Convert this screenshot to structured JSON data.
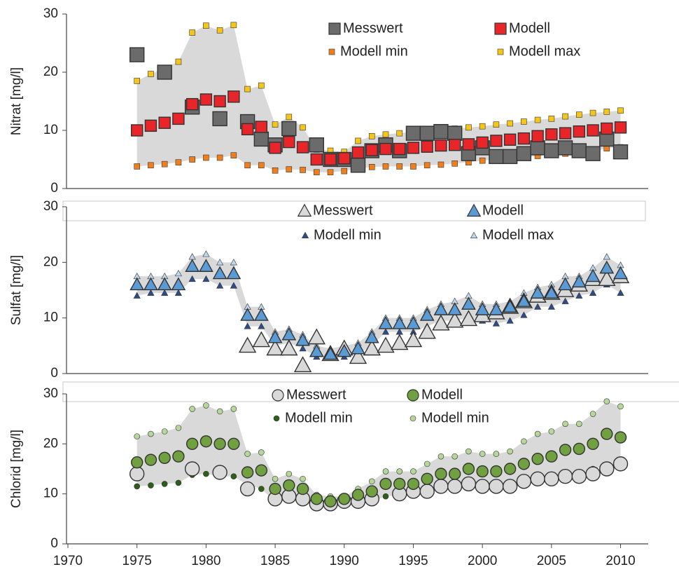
{
  "chart_data": [
    {
      "type": "scatter",
      "ylabel": "Nitrat [mg/l]",
      "marker": "square",
      "band_color": "#d9d9d9",
      "x": [
        1975,
        1976,
        1977,
        1978,
        1979,
        1980,
        1981,
        1982,
        1983,
        1984,
        1985,
        1986,
        1987,
        1988,
        1989,
        1990,
        1991,
        1992,
        1993,
        1994,
        1995,
        1996,
        1997,
        1998,
        1999,
        2000,
        2001,
        2002,
        2003,
        2004,
        2005,
        2006,
        2007,
        2008,
        2009,
        2010
      ],
      "xlim": [
        1970,
        2012
      ],
      "ylim": [
        0,
        30
      ],
      "yticks": [
        0,
        10,
        20,
        30
      ],
      "series": [
        {
          "name": "Messwert",
          "color": "#6b6b6b",
          "values": [
            23,
            null,
            20,
            null,
            14,
            null,
            12,
            null,
            11.5,
            8.5,
            7.5,
            10.3,
            null,
            7.5,
            5,
            5,
            4,
            6.5,
            7.5,
            6.5,
            9.5,
            9.5,
            9.8,
            9.5,
            6,
            7,
            5.5,
            5.5,
            6,
            7,
            6.5,
            7,
            6.5,
            6,
            8.5,
            6.3
          ]
        },
        {
          "name": "Modell",
          "color": "#e8262a",
          "values": [
            10,
            10.8,
            11.3,
            12,
            14.5,
            15.3,
            15,
            15.8,
            10.2,
            10.6,
            7,
            8,
            7.1,
            5,
            5,
            5.2,
            6.2,
            6.6,
            6.8,
            6.8,
            7,
            7.2,
            7.4,
            7.5,
            7.6,
            7.9,
            8.2,
            8.4,
            8.6,
            9,
            9.3,
            9.5,
            9.8,
            10,
            10.3,
            10.5
          ]
        },
        {
          "name": "Modell min",
          "color": "#f07f1b",
          "values": [
            3.8,
            4,
            4.2,
            4.5,
            5,
            5.3,
            5.3,
            5.7,
            4,
            4,
            3.1,
            3.3,
            3.2,
            2.8,
            2.8,
            3,
            3.5,
            3.7,
            3.8,
            3.8,
            3.8,
            4,
            4.1,
            4.3,
            4.5,
            4.8,
            5,
            5.1,
            5.3,
            5.6,
            5.9,
            6,
            6.2,
            6.4,
            6.9,
            7.1
          ]
        },
        {
          "name": "Modell max",
          "color": "#f5c518",
          "values": [
            18.5,
            19.7,
            20.7,
            21.8,
            26.8,
            28,
            27.2,
            28.1,
            17.1,
            17.7,
            11,
            12.3,
            10.5,
            6.7,
            6.5,
            6.3,
            8.2,
            9,
            9.3,
            9.5,
            9.8,
            10,
            10.2,
            10.3,
            10.5,
            10.7,
            11,
            11.2,
            11.5,
            11.8,
            12,
            12.4,
            12.7,
            13,
            13.2,
            13.4
          ]
        }
      ]
    },
    {
      "type": "scatter",
      "ylabel": "Sulfat [mg/l]",
      "marker": "triangle",
      "band_color": "#d9d9d9",
      "x": [
        1975,
        1976,
        1977,
        1978,
        1979,
        1980,
        1981,
        1982,
        1983,
        1984,
        1985,
        1986,
        1987,
        1988,
        1989,
        1990,
        1991,
        1992,
        1993,
        1994,
        1995,
        1996,
        1997,
        1998,
        1999,
        2000,
        2001,
        2002,
        2003,
        2004,
        2005,
        2006,
        2007,
        2008,
        2009,
        2010
      ],
      "xlim": [
        1970,
        2012
      ],
      "ylim": [
        0,
        30
      ],
      "yticks": [
        0,
        10,
        20,
        30
      ],
      "series": [
        {
          "name": "Messwert",
          "color": "#d9d9d9",
          "values": [
            null,
            null,
            null,
            null,
            null,
            null,
            null,
            null,
            5,
            6,
            4.5,
            4.5,
            1.5,
            6.5,
            3.5,
            4.5,
            3,
            4.5,
            5,
            5.5,
            6,
            7.5,
            9,
            9.5,
            9.8,
            10.5,
            11,
            12,
            13,
            14,
            14.5,
            15,
            16,
            17,
            17,
            17.5
          ]
        },
        {
          "name": "Modell",
          "color": "#5b9bd5",
          "values": [
            16,
            16,
            16,
            16,
            19.3,
            19.3,
            18,
            18,
            10.5,
            10.5,
            6.5,
            7,
            6,
            4,
            3.5,
            4,
            4.5,
            6.5,
            9,
            9,
            9,
            10.5,
            11.5,
            11.5,
            12.5,
            11.5,
            11.5,
            12,
            13,
            14.5,
            14.5,
            16,
            16.5,
            17.5,
            19,
            18
          ]
        },
        {
          "name": "Modell min",
          "color": "#2e4b8a",
          "values": [
            14,
            14.5,
            14.5,
            14.5,
            17,
            17,
            15.8,
            15.8,
            8.5,
            8.5,
            5,
            5.5,
            4.5,
            3,
            3,
            3,
            3.5,
            5,
            7.5,
            7.5,
            7.5,
            8.5,
            9.5,
            9.5,
            10,
            9.5,
            9,
            9.5,
            10.5,
            12,
            12,
            13,
            14,
            14.5,
            16,
            14.5
          ]
        },
        {
          "name": "Modell max",
          "color": "#bdd7ee",
          "values": [
            17.5,
            17.5,
            17.5,
            18,
            21,
            21.5,
            20,
            20,
            12,
            12,
            7.5,
            8,
            7,
            5,
            4.5,
            5,
            5.5,
            7.5,
            10,
            10,
            10,
            11.5,
            12.5,
            13,
            14,
            12.5,
            12.5,
            13,
            14.5,
            15.5,
            16,
            17.5,
            17.5,
            19,
            21,
            19.5
          ]
        }
      ]
    },
    {
      "type": "scatter",
      "ylabel": "Chlorid [mg/l]",
      "marker": "circle",
      "band_color": "#d9d9d9",
      "x": [
        1975,
        1976,
        1977,
        1978,
        1979,
        1980,
        1981,
        1982,
        1983,
        1984,
        1985,
        1986,
        1987,
        1988,
        1989,
        1990,
        1991,
        1992,
        1993,
        1994,
        1995,
        1996,
        1997,
        1998,
        1999,
        2000,
        2001,
        2002,
        2003,
        2004,
        2005,
        2006,
        2007,
        2008,
        2009,
        2010
      ],
      "xlim": [
        1970,
        2012
      ],
      "xticks": [
        1970,
        1975,
        1980,
        1985,
        1990,
        1995,
        2000,
        2005,
        2010
      ],
      "ylim": [
        0,
        30
      ],
      "yticks": [
        0,
        10,
        20,
        30
      ],
      "series": [
        {
          "name": "Messwert",
          "color": "#d9d9d9",
          "values": [
            14,
            null,
            null,
            null,
            15,
            null,
            14.3,
            null,
            11,
            null,
            9,
            9.5,
            9,
            8,
            8,
            8.5,
            8.5,
            9,
            null,
            10,
            10.5,
            10.5,
            11.5,
            11.5,
            12,
            11.5,
            11.5,
            11.5,
            12.5,
            13,
            13,
            13.5,
            13.5,
            14,
            15,
            16
          ]
        },
        {
          "name": "Modell",
          "color": "#70a040",
          "values": [
            16.3,
            16.8,
            17.2,
            17.5,
            20,
            20.5,
            20,
            20,
            14.3,
            14.7,
            11,
            11.7,
            11,
            9,
            8.5,
            9,
            9.8,
            10.5,
            12,
            12,
            12,
            13,
            14,
            14,
            15,
            14.5,
            14.5,
            15,
            16,
            17,
            17.5,
            18.8,
            19,
            20,
            22,
            21.3
          ]
        },
        {
          "name": "Modell min",
          "color": "#2f5d1a",
          "values": [
            11.5,
            11.7,
            12,
            12.2,
            13.8,
            14,
            13.5,
            13.5,
            11.8,
            11,
            8.5,
            9,
            8.5,
            7.5,
            7.5,
            8,
            8,
            8.5,
            9.5,
            9.8,
            10,
            10.5,
            11,
            11,
            11.5,
            11.8,
            11.5,
            11.8,
            12.5,
            13,
            13.5,
            13.8,
            14,
            15,
            15.5,
            16
          ]
        },
        {
          "name": "Modell min",
          "color": "#b6d69a",
          "values": [
            21.5,
            22,
            22.5,
            23.2,
            27,
            27.7,
            26.5,
            27,
            18,
            18.3,
            13,
            14,
            13,
            9.8,
            9.5,
            9.5,
            11,
            12.5,
            14.5,
            14.5,
            14.5,
            16,
            17.5,
            17.5,
            18.5,
            18,
            18,
            18.5,
            20.5,
            22,
            22.5,
            24,
            24,
            26,
            28.5,
            27.5
          ]
        }
      ]
    }
  ]
}
